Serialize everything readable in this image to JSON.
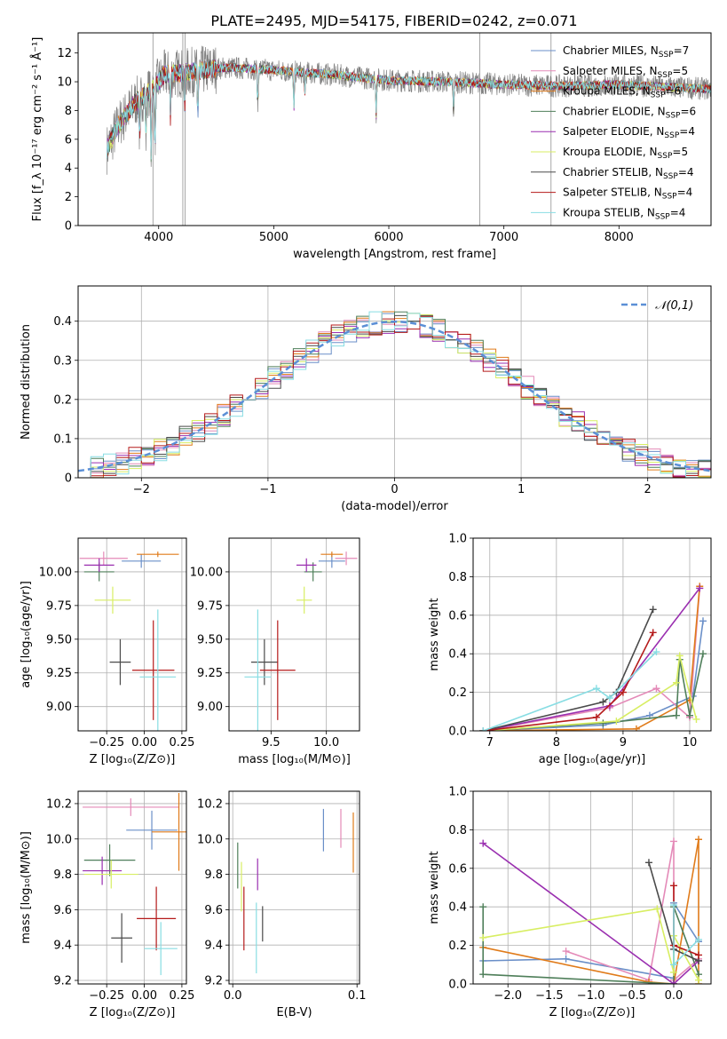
{
  "figure_title": "PLATE=2495, MJD=54175, FIBERID=0242, z=0.071",
  "series_colors": [
    "#6a8fc8",
    "#e48ab8",
    "#e07b1a",
    "#4f7f5a",
    "#9a2fb0",
    "#d8ee63",
    "#4a4a4a",
    "#b51a1a",
    "#88dde3"
  ],
  "chart_data": [
    {
      "id": "spectrum",
      "type": "line",
      "title": "PLATE=2495, MJD=54175, FIBERID=0242, z=0.071",
      "xlabel": "wavelength [Angstrom, rest frame]",
      "ylabel": "Flux [f_λ 10⁻¹⁷ erg cm⁻² s⁻¹ Å⁻¹]",
      "xlim": [
        3300,
        8800
      ],
      "ylim": [
        0,
        13.4
      ],
      "xticks": [
        4000,
        5000,
        6000,
        7000,
        8000
      ],
      "yticks": [
        0,
        2,
        4,
        6,
        8,
        10,
        12
      ],
      "grid": false,
      "legend_position": "right",
      "data_color": "#808080",
      "series": [
        {
          "name": "Chabrier MILES, N_SSP=7"
        },
        {
          "name": "Salpeter MILES, N_SSP=5"
        },
        {
          "name": "Kroupa MILES, N_SSP=6"
        },
        {
          "name": "Chabrier ELODIE, N_SSP=6"
        },
        {
          "name": "Salpeter ELODIE, N_SSP=4"
        },
        {
          "name": "Kroupa ELODIE, N_SSP=5"
        },
        {
          "name": "Chabrier STELIB, N_SSP=4"
        },
        {
          "name": "Salpeter STELIB, N_SSP=4"
        },
        {
          "name": "Kroupa STELIB, N_SSP=4"
        }
      ],
      "continuum": {
        "x": [
          3550,
          3650,
          3800,
          3950,
          4050,
          4300,
          4600,
          5000,
          5500,
          6000,
          6500,
          7000,
          7500,
          8000,
          8500,
          8800
        ],
        "y": [
          5.3,
          7.0,
          8.6,
          9.5,
          10.5,
          10.7,
          11.0,
          10.8,
          10.5,
          10.1,
          10.0,
          9.8,
          9.7,
          9.8,
          9.6,
          9.5
        ]
      }
    },
    {
      "id": "residuals",
      "type": "histogram",
      "xlabel": "(data-model)/error",
      "ylabel": "Normed distribution",
      "xlim": [
        -2.5,
        2.5
      ],
      "ylim": [
        0,
        0.49
      ],
      "xticks": [
        -2,
        -1,
        0,
        1,
        2
      ],
      "yticks": [
        0.0,
        0.1,
        0.2,
        0.3,
        0.4
      ],
      "grid": true,
      "legend_position": "top-right",
      "reference_curve": {
        "name": "𝒩(0,1)",
        "color": "#5b8fd6",
        "style": "dashed"
      },
      "bin_edges_range": [
        -2.5,
        2.5
      ],
      "bin_count": 50
    },
    {
      "id": "age-vs-z",
      "type": "scatter",
      "xlabel": "Z [log₁₀(Z/Z⊙)]",
      "ylabel": "age  [log₁₀(age/yr)]",
      "xlim": [
        -0.44,
        0.28
      ],
      "ylim": [
        8.82,
        10.25
      ],
      "xticks": [
        -0.25,
        0.0,
        0.25
      ],
      "xticklabels": [
        "−0.25",
        "0.00",
        "0.25"
      ],
      "yticks": [
        9.0,
        9.25,
        9.5,
        9.75,
        10.0
      ],
      "yticklabels": [
        "9.00",
        "9.25",
        "9.50",
        "9.75",
        "10.00"
      ],
      "grid": true,
      "points": [
        {
          "x": -0.02,
          "y": 10.08,
          "xerr": 0.13,
          "yerr": 0.05
        },
        {
          "x": -0.27,
          "y": 10.1,
          "xerr": 0.16,
          "yerr": 0.05
        },
        {
          "x": 0.09,
          "y": 10.13,
          "xerr": 0.14,
          "yerr": 0.02
        },
        {
          "x": -0.3,
          "y": 10.0,
          "xerr": 0.1,
          "yerr": 0.07
        },
        {
          "x": -0.3,
          "y": 10.05,
          "xerr": 0.1,
          "yerr": 0.05
        },
        {
          "x": -0.21,
          "y": 9.79,
          "xerr": 0.12,
          "yerr": 0.1
        },
        {
          "x": -0.16,
          "y": 9.33,
          "xerr": 0.07,
          "yerr": 0.17
        },
        {
          "x": 0.06,
          "y": 9.27,
          "xerr": 0.14,
          "yerr": 0.37
        },
        {
          "x": 0.09,
          "y": 9.22,
          "xerr": 0.12,
          "yerr": 0.5
        }
      ]
    },
    {
      "id": "age-vs-mass",
      "type": "scatter",
      "xlabel": "mass [log₁₀(M/M⊙)]",
      "ylabel": "",
      "xlim": [
        9.12,
        10.3
      ],
      "ylim": [
        8.82,
        10.25
      ],
      "xticks": [
        9.5,
        10.0
      ],
      "xticklabels": [
        "9.5",
        "10.0"
      ],
      "yticks": [
        9.0,
        9.25,
        9.5,
        9.75,
        10.0
      ],
      "yticklabels": [
        "9.00",
        "9.25",
        "9.50",
        "9.75",
        "10.00"
      ],
      "grid": true,
      "points": [
        {
          "x": 10.05,
          "y": 10.08,
          "xerr": 0.12,
          "yerr": 0.05
        },
        {
          "x": 10.18,
          "y": 10.1,
          "xerr": 0.1,
          "yerr": 0.05
        },
        {
          "x": 10.05,
          "y": 10.13,
          "xerr": 0.1,
          "yerr": 0.02
        },
        {
          "x": 9.88,
          "y": 10.0,
          "xerr": 0.08,
          "yerr": 0.07
        },
        {
          "x": 9.82,
          "y": 10.05,
          "xerr": 0.09,
          "yerr": 0.05
        },
        {
          "x": 9.8,
          "y": 9.79,
          "xerr": 0.07,
          "yerr": 0.1
        },
        {
          "x": 9.44,
          "y": 9.33,
          "xerr": 0.12,
          "yerr": 0.17
        },
        {
          "x": 9.56,
          "y": 9.27,
          "xerr": 0.16,
          "yerr": 0.37
        },
        {
          "x": 9.38,
          "y": 9.22,
          "xerr": 0.12,
          "yerr": 0.5
        }
      ]
    },
    {
      "id": "massweight-vs-age",
      "type": "line",
      "xlabel": "age  [log₁₀(age/yr)]",
      "ylabel": "mass weight",
      "xlim": [
        6.75,
        10.32
      ],
      "ylim": [
        0,
        1.0
      ],
      "xticks": [
        7,
        8,
        9,
        10
      ],
      "xticklabels": [
        "7",
        "8",
        "9",
        "10"
      ],
      "yticks": [
        0.0,
        0.2,
        0.4,
        0.6,
        0.8,
        1.0
      ],
      "yticklabels": [
        "0.0",
        "0.2",
        "0.4",
        "0.6",
        "0.8",
        "1.0"
      ],
      "grid": true,
      "series": [
        {
          "x": [
            6.9,
            8.7,
            9.4,
            10.05,
            10.2
          ],
          "y": [
            0.0,
            0.03,
            0.08,
            0.18,
            0.57
          ]
        },
        {
          "x": [
            6.9,
            8.8,
            9.5,
            10.0,
            10.15
          ],
          "y": [
            0.0,
            0.12,
            0.22,
            0.07,
            0.74
          ]
        },
        {
          "x": [
            6.9,
            9.2,
            10.0,
            10.15
          ],
          "y": [
            0.0,
            0.01,
            0.16,
            0.75
          ]
        },
        {
          "x": [
            6.9,
            8.7,
            9.8,
            9.85,
            10.0,
            10.2
          ],
          "y": [
            0.0,
            0.04,
            0.08,
            0.37,
            0.08,
            0.4
          ]
        },
        {
          "x": [
            6.9,
            8.8,
            10.15
          ],
          "y": [
            0.0,
            0.13,
            0.74
          ]
        },
        {
          "x": [
            6.9,
            8.9,
            9.8,
            9.85,
            10.1
          ],
          "y": [
            0.0,
            0.05,
            0.25,
            0.39,
            0.06
          ]
        },
        {
          "x": [
            6.9,
            8.7,
            8.9,
            9.45
          ],
          "y": [
            0.0,
            0.15,
            0.2,
            0.63
          ]
        },
        {
          "x": [
            6.9,
            8.6,
            9.0,
            9.45
          ],
          "y": [
            0.0,
            0.07,
            0.2,
            0.51
          ]
        },
        {
          "x": [
            6.9,
            8.6,
            8.8,
            9.5
          ],
          "y": [
            0.0,
            0.22,
            0.17,
            0.41
          ]
        }
      ]
    },
    {
      "id": "mass-vs-z",
      "type": "scatter",
      "xlabel": "Z [log₁₀(Z/Z⊙)]",
      "ylabel": "mass [log₁₀(M/M⊙)]",
      "xlim": [
        -0.44,
        0.28
      ],
      "ylim": [
        9.18,
        10.27
      ],
      "xticks": [
        -0.25,
        0.0,
        0.25
      ],
      "xticklabels": [
        "−0.25",
        "0.00",
        "0.25"
      ],
      "yticks": [
        9.2,
        9.4,
        9.6,
        9.8,
        10.0,
        10.2
      ],
      "yticklabels": [
        "9.2",
        "9.4",
        "9.6",
        "9.8",
        "10.0",
        "10.2"
      ],
      "grid": true,
      "points": [
        {
          "x": 0.05,
          "y": 10.05,
          "xerr": 0.17,
          "yerr": 0.11
        },
        {
          "x": -0.09,
          "y": 10.18,
          "xerr": 0.32,
          "yerr": 0.05
        },
        {
          "x": 0.23,
          "y": 10.04,
          "xerr": 0.18,
          "yerr": 0.22
        },
        {
          "x": -0.23,
          "y": 9.88,
          "xerr": 0.17,
          "yerr": 0.09
        },
        {
          "x": -0.28,
          "y": 9.82,
          "xerr": 0.13,
          "yerr": 0.08
        },
        {
          "x": -0.22,
          "y": 9.8,
          "xerr": 0.18,
          "yerr": 0.08
        },
        {
          "x": -0.15,
          "y": 9.44,
          "xerr": 0.07,
          "yerr": 0.14
        },
        {
          "x": 0.08,
          "y": 9.55,
          "xerr": 0.13,
          "yerr": 0.18
        },
        {
          "x": 0.11,
          "y": 9.38,
          "xerr": 0.11,
          "yerr": 0.15
        }
      ]
    },
    {
      "id": "mass-vs-ebv",
      "type": "scatter",
      "xlabel": "E(B-V)",
      "ylabel": "",
      "xlim": [
        -0.003,
        0.102
      ],
      "ylim": [
        9.18,
        10.27
      ],
      "xticks": [
        0.0,
        0.1
      ],
      "xticklabels": [
        "0.0",
        "0.1"
      ],
      "yticks": [
        9.2,
        9.4,
        9.6,
        9.8,
        10.0,
        10.2
      ],
      "yticklabels": [
        "9.2",
        "9.4",
        "9.6",
        "9.8",
        "10.0",
        "10.2"
      ],
      "grid": true,
      "points": [
        {
          "x": 0.073,
          "y": 10.05,
          "xerr": 0,
          "yerr": 0.12
        },
        {
          "x": 0.087,
          "y": 10.06,
          "xerr": 0,
          "yerr": 0.11
        },
        {
          "x": 0.097,
          "y": 9.98,
          "xerr": 0,
          "yerr": 0.17
        },
        {
          "x": 0.004,
          "y": 9.85,
          "xerr": 0,
          "yerr": 0.13
        },
        {
          "x": 0.02,
          "y": 9.8,
          "xerr": 0,
          "yerr": 0.09
        },
        {
          "x": 0.007,
          "y": 9.73,
          "xerr": 0,
          "yerr": 0.14
        },
        {
          "x": 0.024,
          "y": 9.52,
          "xerr": 0,
          "yerr": 0.1
        },
        {
          "x": 0.009,
          "y": 9.55,
          "xerr": 0,
          "yerr": 0.18
        },
        {
          "x": 0.019,
          "y": 9.44,
          "xerr": 0,
          "yerr": 0.2
        }
      ]
    },
    {
      "id": "massweight-vs-z",
      "type": "line",
      "xlabel": "Z [log₁₀(Z/Z⊙)]",
      "ylabel": "mass weight",
      "xlim": [
        -2.42,
        0.45
      ],
      "ylim": [
        0,
        1.0
      ],
      "xticks": [
        -2.0,
        -1.5,
        -1.0,
        -0.5,
        0.0
      ],
      "xticklabels": [
        "−2.0",
        "−1.5",
        "−1.0",
        "−0.5",
        "0.0"
      ],
      "yticks": [
        0.0,
        0.2,
        0.4,
        0.6,
        0.8,
        1.0
      ],
      "yticklabels": [
        "0.0",
        "0.2",
        "0.4",
        "0.6",
        "0.8",
        "1.0"
      ],
      "grid": true,
      "series": [
        {
          "x": [
            -2.3,
            -1.3,
            0.0,
            0.0,
            0.3
          ],
          "y": [
            0.12,
            0.13,
            0.03,
            0.42,
            0.22
          ]
        },
        {
          "x": [
            -1.3,
            -0.3,
            0.0,
            0.0,
            0.3
          ],
          "y": [
            0.17,
            0.02,
            0.74,
            0.02,
            0.13
          ]
        },
        {
          "x": [
            -2.3,
            -0.3,
            0.0,
            0.3,
            0.3
          ],
          "y": [
            0.19,
            0.01,
            0.0,
            0.75,
            0.0
          ]
        },
        {
          "x": [
            -2.3,
            -2.3,
            0.0,
            0.0,
            0.3
          ],
          "y": [
            0.4,
            0.05,
            0.0,
            0.4,
            0.05
          ]
        },
        {
          "x": [
            -2.3,
            0.0,
            0.3
          ],
          "y": [
            0.73,
            0.0,
            0.12
          ]
        },
        {
          "x": [
            -2.3,
            -0.2,
            0.0,
            0.0,
            0.3
          ],
          "y": [
            0.24,
            0.39,
            0.06,
            0.25,
            0.02
          ]
        },
        {
          "x": [
            -0.3,
            0.0,
            0.3
          ],
          "y": [
            0.63,
            0.18,
            0.12
          ]
        },
        {
          "x": [
            0.0,
            0.0,
            0.3
          ],
          "y": [
            0.51,
            0.2,
            0.15
          ]
        },
        {
          "x": [
            0.0,
            0.0,
            0.3
          ],
          "y": [
            0.41,
            0.1,
            0.23
          ]
        }
      ]
    }
  ]
}
